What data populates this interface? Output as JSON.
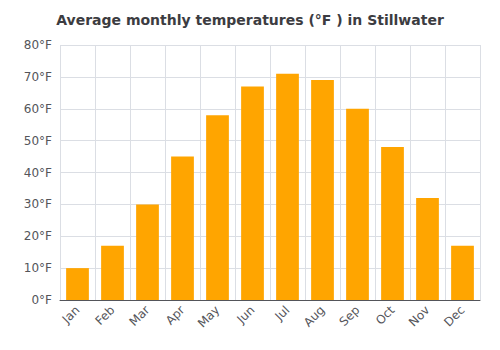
{
  "chart_data": {
    "type": "bar",
    "title": "Average monthly temperatures (°F ) in Stillwater",
    "categories": [
      "Jan",
      "Feb",
      "Mar",
      "Apr",
      "May",
      "Jun",
      "Jul",
      "Aug",
      "Sep",
      "Oct",
      "Nov",
      "Dec"
    ],
    "values": [
      10,
      17,
      30,
      45,
      58,
      67,
      71,
      69,
      60,
      48,
      32,
      17
    ],
    "color": "#FFA500",
    "ylim": [
      0,
      80
    ],
    "yticks": [
      {
        "value": 0,
        "label": "0°F"
      },
      {
        "value": 10,
        "label": "10°F"
      },
      {
        "value": 20,
        "label": "20°F"
      },
      {
        "value": 30,
        "label": "30°F"
      },
      {
        "value": 40,
        "label": "40°F"
      },
      {
        "value": 50,
        "label": "50°F"
      },
      {
        "value": 60,
        "label": "60°F"
      },
      {
        "value": 70,
        "label": "70°F"
      },
      {
        "value": 80,
        "label": "80°F"
      }
    ],
    "grid": true
  }
}
